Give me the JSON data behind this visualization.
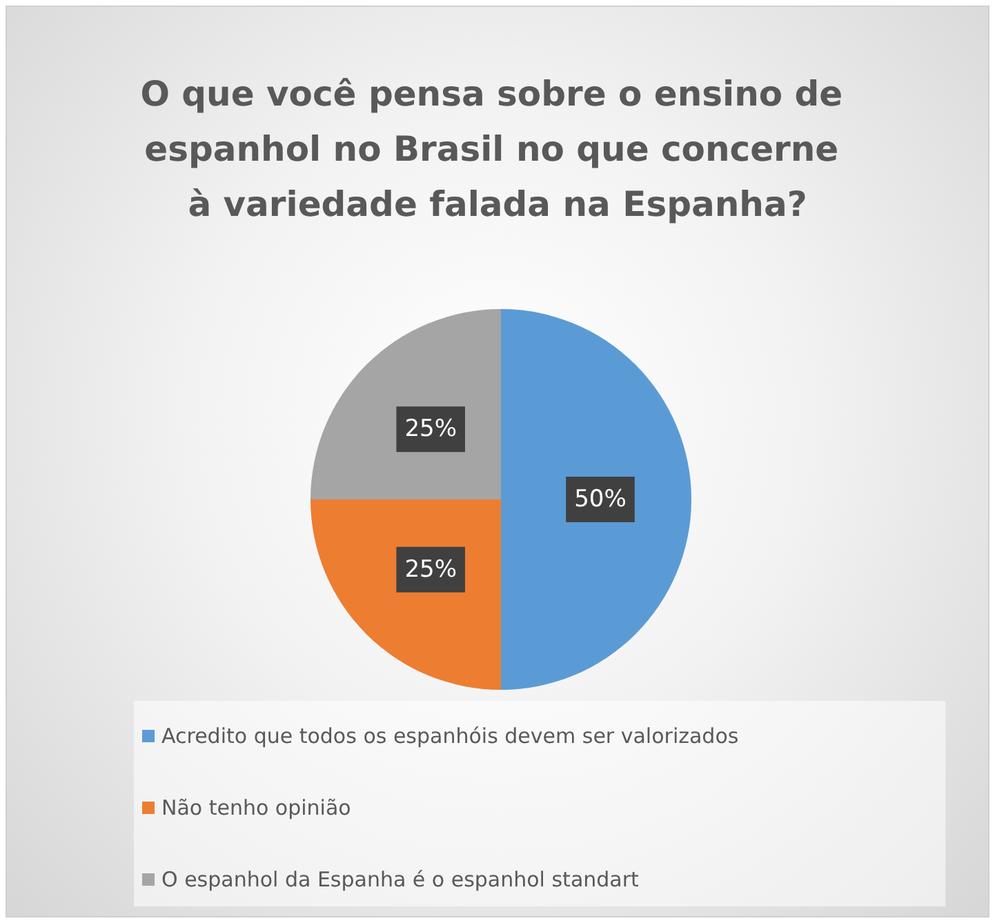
{
  "chart_data": {
    "type": "pie",
    "title": "O que você pensa sobre o ensino de espanhol no Brasil no que concerne à variedade falada na Espanha?",
    "categories": [
      "Acredito que todos os espanhóis devem ser valorizados",
      "Não tenho opinião",
      "O espanhol da Espanha é o espanhol standart"
    ],
    "values": [
      50,
      25,
      25
    ],
    "colors": [
      "#5b9bd5",
      "#ed7d31",
      "#a5a5a5"
    ],
    "value_labels": [
      "50%",
      "25%",
      "25%"
    ],
    "legend": "bottom"
  }
}
